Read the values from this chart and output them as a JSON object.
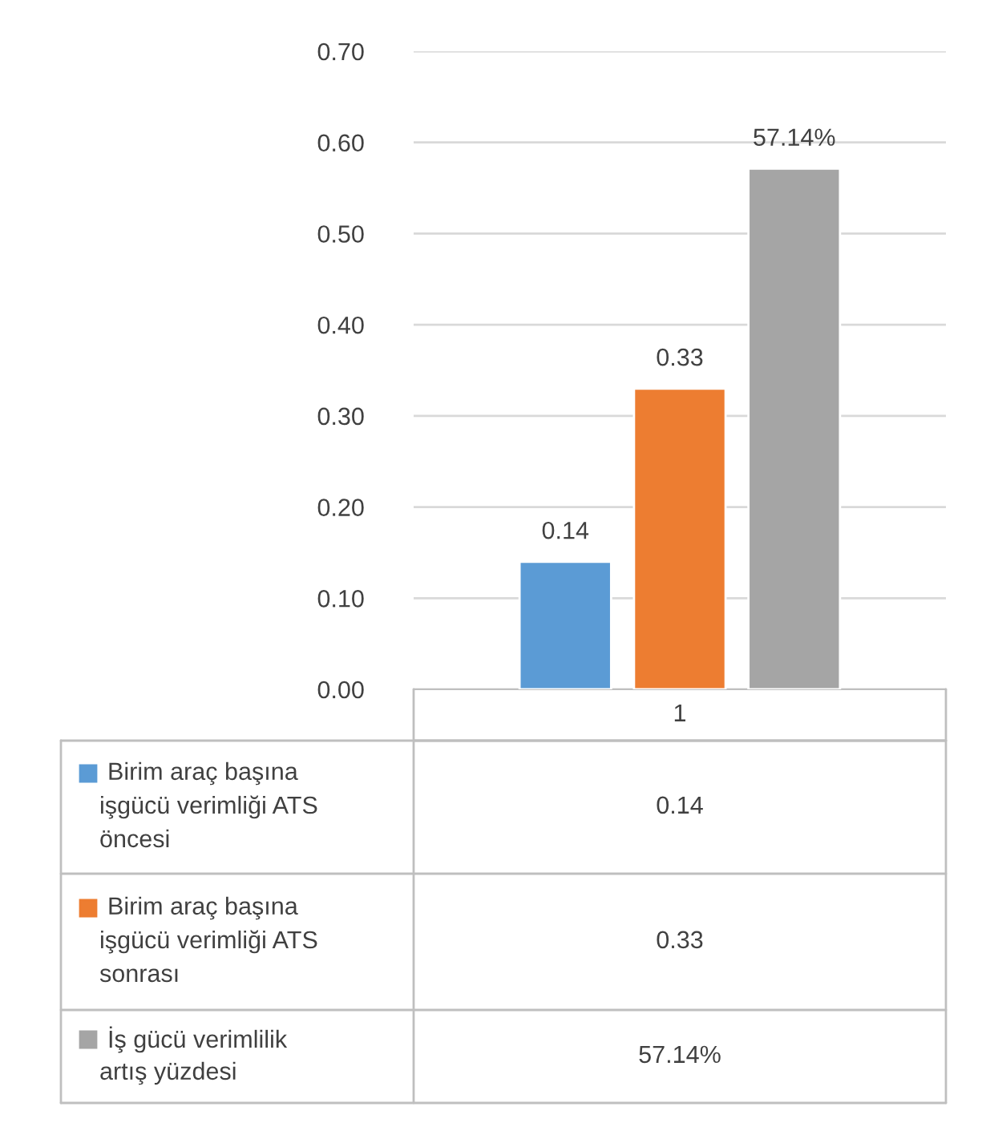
{
  "chart_data": {
    "type": "bar",
    "categories": [
      "1"
    ],
    "series": [
      {
        "name": "Birim araç başına işgücü verimliği ATS öncesi",
        "color": "#5b9bd5",
        "values": [
          0.14
        ],
        "value_labels": [
          "0.14"
        ]
      },
      {
        "name": "Birim araç başına işgücü verimliği ATS sonrası",
        "color": "#ed7d31",
        "values": [
          0.33
        ],
        "value_labels": [
          "0.33"
        ]
      },
      {
        "name": "İş gücü verimlilik artış yüzdesi",
        "color": "#a5a5a5",
        "values": [
          0.5714
        ],
        "value_labels": [
          "57.14%"
        ]
      }
    ],
    "ylim": [
      0,
      0.7
    ],
    "yticks": [
      {
        "value": 0,
        "label": "0.00"
      },
      {
        "value": 0.1,
        "label": "0.10"
      },
      {
        "value": 0.2,
        "label": "0.20"
      },
      {
        "value": 0.3,
        "label": "0.30"
      },
      {
        "value": 0.4,
        "label": "0.40"
      },
      {
        "value": 0.5,
        "label": "0.50"
      },
      {
        "value": 0.6,
        "label": "0.60"
      },
      {
        "value": 0.7,
        "label": "0.70"
      }
    ],
    "grid": "y",
    "legend": "bottom"
  }
}
